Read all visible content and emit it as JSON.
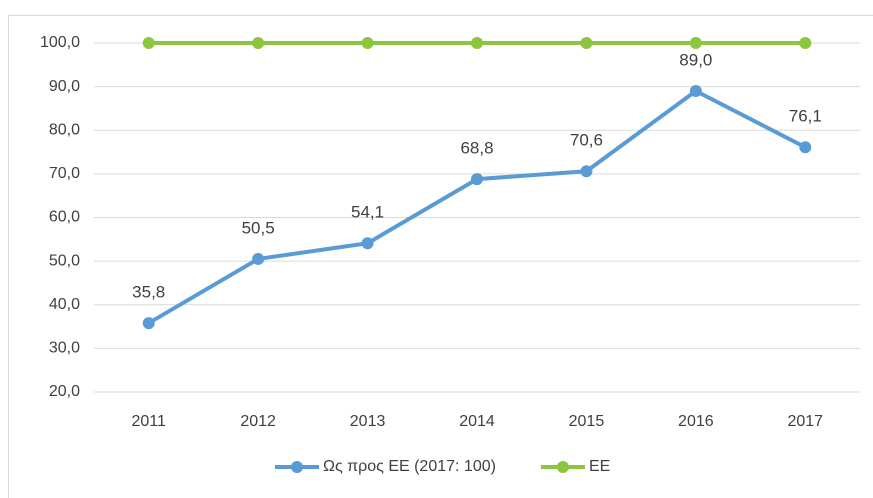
{
  "chart_data": {
    "type": "line",
    "categories": [
      "2011",
      "2012",
      "2013",
      "2014",
      "2015",
      "2016",
      "2017"
    ],
    "series": [
      {
        "name": "Ως προς ΕΕ (2017: 100)",
        "color": "#5b9bd5",
        "values": [
          35.8,
          50.5,
          54.1,
          68.8,
          70.6,
          89.0,
          76.1
        ],
        "value_labels": [
          "35,8",
          "50,5",
          "54,1",
          "68,8",
          "70,6",
          "89,0",
          "76,1"
        ]
      },
      {
        "name": "ΕΕ",
        "color": "#8cc63f",
        "values": [
          100,
          100,
          100,
          100,
          100,
          100,
          100
        ]
      }
    ],
    "ylim": [
      20,
      100
    ],
    "yticks": [
      {
        "value": 20,
        "label": "20,0"
      },
      {
        "value": 30,
        "label": "30,0"
      },
      {
        "value": 40,
        "label": "40,0"
      },
      {
        "value": 50,
        "label": "50,0"
      },
      {
        "value": 60,
        "label": "60,0"
      },
      {
        "value": 70,
        "label": "70,0"
      },
      {
        "value": 80,
        "label": "80,0"
      },
      {
        "value": 90,
        "label": "90,0"
      },
      {
        "value": 100,
        "label": "100,0"
      }
    ],
    "grid": true,
    "legend": "bottom"
  }
}
